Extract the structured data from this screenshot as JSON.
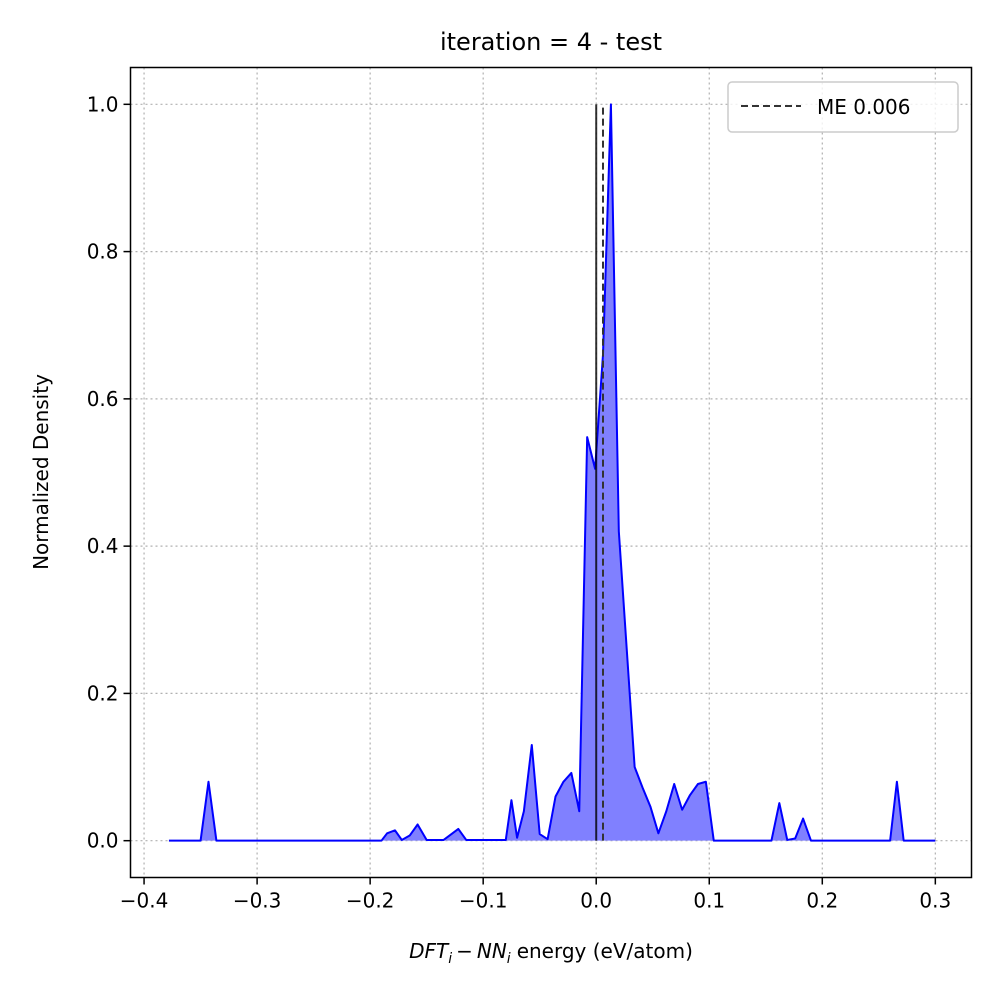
{
  "chart_data": {
    "type": "area",
    "title": "iteration = 4 - test",
    "xlabel_prefix": "DFT",
    "xlabel_sub1": "i",
    "xlabel_minus": "−",
    "xlabel_mid": "NN",
    "xlabel_sub2": "i",
    "xlabel_suffix": "energy (eV/atom)",
    "ylabel": "Normalized Density",
    "xlim": [
      -0.412,
      0.332
    ],
    "ylim": [
      -0.05,
      1.05
    ],
    "grid": true,
    "legend_position": "top-right",
    "x_ticks": [
      -0.4,
      -0.3,
      -0.2,
      -0.1,
      0.0,
      0.1,
      0.2,
      0.3
    ],
    "x_tick_labels": [
      "−0.4",
      "−0.3",
      "−0.2",
      "−0.1",
      "0.0",
      "0.1",
      "0.2",
      "0.3"
    ],
    "y_ticks": [
      0.0,
      0.2,
      0.4,
      0.6,
      0.8,
      1.0
    ],
    "y_tick_labels": [
      "0.0",
      "0.2",
      "0.4",
      "0.6",
      "0.8",
      "1.0"
    ],
    "series": [
      {
        "color": "#0000ff",
        "fill": "#8080ff",
        "x": [
          -0.378,
          -0.35,
          -0.343,
          -0.336,
          -0.19,
          -0.185,
          -0.178,
          -0.172,
          -0.165,
          -0.158,
          -0.15,
          -0.135,
          -0.122,
          -0.115,
          -0.108,
          -0.1,
          -0.08,
          -0.075,
          -0.07,
          -0.064,
          -0.057,
          -0.05,
          -0.043,
          -0.036,
          -0.029,
          -0.022,
          -0.015,
          -0.008,
          -0.001,
          0.006,
          0.013,
          0.02,
          0.027,
          0.034,
          0.041,
          0.048,
          0.055,
          0.062,
          0.069,
          0.076,
          0.083,
          0.09,
          0.097,
          0.104,
          0.155,
          0.162,
          0.169,
          0.176,
          0.183,
          0.19,
          0.26,
          0.266,
          0.272,
          0.3
        ],
        "y": [
          0.0,
          0.0,
          0.08,
          0.0,
          0.0,
          0.01,
          0.014,
          0.001,
          0.007,
          0.022,
          0.001,
          0.001,
          0.016,
          0.001,
          0.001,
          0.001,
          0.001,
          0.055,
          0.004,
          0.04,
          0.13,
          0.009,
          0.002,
          0.06,
          0.08,
          0.092,
          0.04,
          0.548,
          0.505,
          0.66,
          1.0,
          0.42,
          0.26,
          0.1,
          0.072,
          0.046,
          0.01,
          0.04,
          0.077,
          0.042,
          0.062,
          0.077,
          0.08,
          0.0,
          0.0,
          0.051,
          0.001,
          0.003,
          0.03,
          0.0,
          0.0,
          0.08,
          0.0,
          0.0
        ]
      }
    ],
    "zero_line": {
      "x": 0.0,
      "color": "#000000"
    },
    "mean_line": {
      "x": 0.006,
      "color": "#333333",
      "legend_label": "ME 0.006"
    }
  }
}
